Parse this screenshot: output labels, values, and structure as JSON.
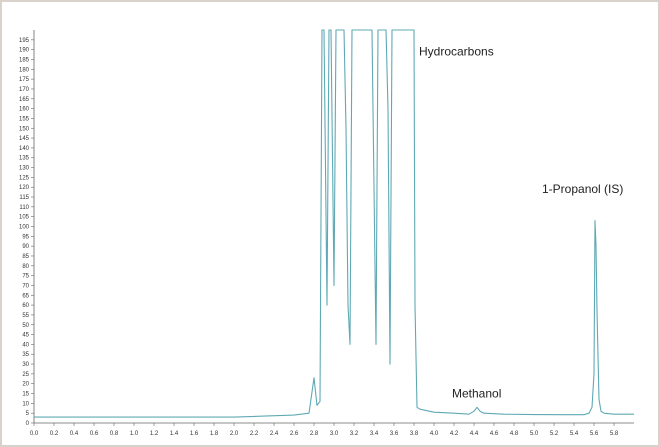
{
  "chart_data": {
    "type": "line",
    "title": "",
    "xlabel": "",
    "ylabel": "",
    "xlim": [
      0.0,
      6.0
    ],
    "ylim": [
      0,
      200
    ],
    "xticks": [
      0.0,
      0.2,
      0.4,
      0.6,
      0.8,
      1.0,
      1.2,
      1.4,
      1.6,
      1.8,
      2.0,
      2.2,
      2.4,
      2.6,
      2.8,
      3.0,
      3.2,
      3.4,
      3.6,
      3.8,
      4.0,
      4.2,
      4.4,
      4.6,
      4.8,
      5.0,
      5.2,
      5.4,
      5.6,
      5.8
    ],
    "xtick_labels": [
      "0.0",
      "0.2",
      "0.4",
      "0.6",
      "0.8",
      "1.0",
      "1.2",
      "1.4",
      "1.6",
      "1.8",
      "2.0",
      "2.2",
      "2.4",
      "2.6",
      "2.8",
      "3.0",
      "3.2",
      "3.4",
      "3.6",
      "3.8",
      "4.0",
      "4.2",
      "4.4",
      "4.6",
      "4.8",
      "5.0",
      "5.2",
      "5.4",
      "5.6",
      "5.8"
    ],
    "yticks": [
      0,
      5,
      10,
      15,
      20,
      25,
      30,
      35,
      40,
      45,
      50,
      55,
      60,
      65,
      70,
      75,
      80,
      85,
      90,
      95,
      100,
      105,
      110,
      115,
      120,
      125,
      130,
      135,
      140,
      145,
      150,
      155,
      160,
      165,
      170,
      175,
      180,
      185,
      190,
      195
    ],
    "ytick_labels": [
      "0",
      "5",
      "10",
      "15",
      "20",
      "25",
      "30",
      "35",
      "40",
      "45",
      "50",
      "55",
      "60",
      "65",
      "70",
      "75",
      "80",
      "85",
      "90",
      "95",
      "100",
      "105",
      "110",
      "115",
      "120",
      "125",
      "130",
      "135",
      "140",
      "145",
      "150",
      "155",
      "160",
      "165",
      "170",
      "175",
      "180",
      "185",
      "190",
      "195"
    ],
    "grid": false,
    "color": "#5fa9b4",
    "series": [
      {
        "x": [
          0.0,
          2.0,
          2.3,
          2.6,
          2.75,
          2.8,
          2.83,
          2.86,
          2.88,
          2.9,
          2.93,
          2.95,
          2.97,
          3.0,
          3.02,
          3.04,
          3.06,
          3.08,
          3.1,
          3.12,
          3.14,
          3.16,
          3.18,
          3.2,
          3.22,
          3.25,
          3.28,
          3.3,
          3.33,
          3.35,
          3.38,
          3.4,
          3.42,
          3.44,
          3.46,
          3.48,
          3.5,
          3.52,
          3.54,
          3.56,
          3.58,
          3.6,
          3.63,
          3.66,
          3.7,
          3.74,
          3.78,
          3.8,
          3.81,
          3.83,
          3.86,
          4.0,
          4.2,
          4.35,
          4.4,
          4.43,
          4.46,
          4.5,
          4.7,
          5.0,
          5.3,
          5.5,
          5.55,
          5.58,
          5.6,
          5.61,
          5.62,
          5.63,
          5.65,
          5.67,
          5.7,
          5.8,
          6.0
        ],
        "y": [
          3,
          3,
          3.5,
          4,
          5,
          23,
          9,
          11,
          200,
          200,
          60,
          200,
          200,
          70,
          200,
          200,
          200,
          200,
          200,
          150,
          60,
          40,
          200,
          200,
          200,
          200,
          200,
          200,
          200,
          200,
          200,
          120,
          40,
          200,
          200,
          200,
          200,
          200,
          160,
          30,
          200,
          200,
          200,
          200,
          200,
          200,
          200,
          200,
          60,
          8,
          7,
          5.5,
          5,
          4.5,
          6,
          8,
          6,
          5,
          4.5,
          4.3,
          4.2,
          4.2,
          5,
          8,
          25,
          103,
          90,
          57,
          12,
          6,
          5,
          4.5,
          4.5
        ]
      }
    ],
    "annotations": [
      {
        "text": "Hydrocarbons",
        "x": 3.85,
        "y": 187
      },
      {
        "text": "1-Propanol (IS)",
        "x": 5.08,
        "y": 117
      },
      {
        "text": "Methanol",
        "x": 4.18,
        "y": 13
      }
    ]
  }
}
